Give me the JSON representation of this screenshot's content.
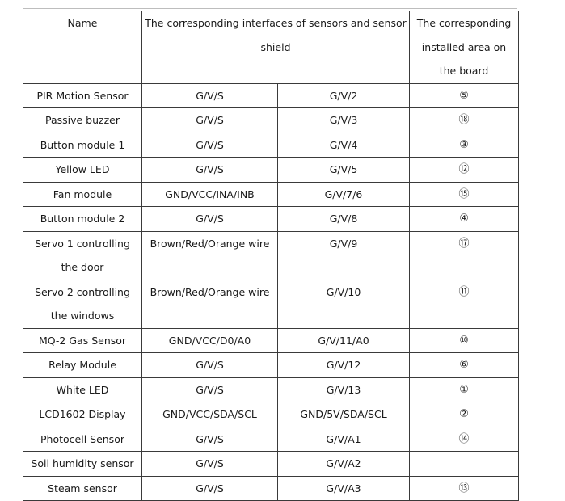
{
  "table": {
    "headers": {
      "name": "Name",
      "interfaces": "The corresponding interfaces of sensors and sensor shield",
      "area": "The corresponding installed area on the board"
    },
    "rows": [
      {
        "name": "PIR Motion Sensor",
        "sensor": "G/V/S",
        "shield": "G/V/2",
        "area": "⑤"
      },
      {
        "name": "Passive buzzer",
        "sensor": "G/V/S",
        "shield": "G/V/3",
        "area": "⑱"
      },
      {
        "name": "Button module 1",
        "sensor": "G/V/S",
        "shield": "G/V/4",
        "area": "③"
      },
      {
        "name": "Yellow LED",
        "sensor": "G/V/S",
        "shield": "G/V/5",
        "area": "⑫"
      },
      {
        "name": "Fan module",
        "sensor": "GND/VCC/INA/INB",
        "shield": "G/V/7/6",
        "area": "⑮"
      },
      {
        "name": "Button module 2",
        "sensor": "G/V/S",
        "shield": "G/V/8",
        "area": "④"
      },
      {
        "name": "Servo 1 controlling the door",
        "sensor": "Brown/Red/Orange wire",
        "shield": "G/V/9",
        "area": "⑰"
      },
      {
        "name": "Servo 2 controlling the windows",
        "sensor": "Brown/Red/Orange wire",
        "shield": "G/V/10",
        "area": "⑪"
      },
      {
        "name": "MQ-2 Gas Sensor",
        "sensor": "GND/VCC/D0/A0",
        "shield": "G/V/11/A0",
        "area": "⑩"
      },
      {
        "name": "Relay Module",
        "sensor": "G/V/S",
        "shield": "G/V/12",
        "area": "⑥"
      },
      {
        "name": "White LED",
        "sensor": "G/V/S",
        "shield": "G/V/13",
        "area": "①"
      },
      {
        "name": "LCD1602 Display",
        "sensor": "GND/VCC/SDA/SCL",
        "shield": "GND/5V/SDA/SCL",
        "area": "②"
      },
      {
        "name": "Photocell Sensor",
        "sensor": "G/V/S",
        "shield": "G/V/A1",
        "area": "⑭"
      },
      {
        "name": "Soil humidity sensor",
        "sensor": "G/V/S",
        "shield": "G/V/A2",
        "area": ""
      },
      {
        "name": "Steam sensor",
        "sensor": "G/V/S",
        "shield": "G/V/A3",
        "area": "⑬"
      }
    ]
  }
}
